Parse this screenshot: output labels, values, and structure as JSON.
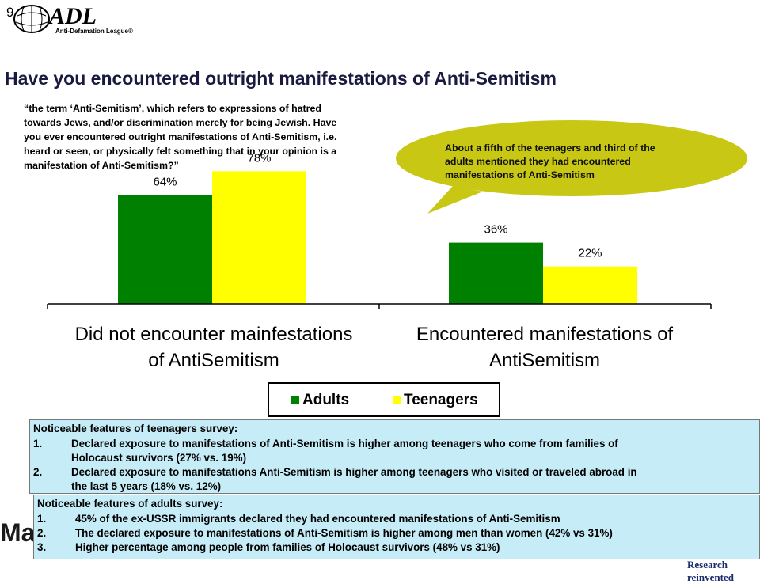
{
  "slide_number": "9",
  "logo": {
    "text": "ADL",
    "subtitle": "Anti-Defamation League®"
  },
  "title": "Have you encountered outright manifestations of Anti-Semitism",
  "question": {
    "lines": [
      "“the term ‘Anti-Semitism’, which refers to expressions of hatred",
      "towards Jews, and/or discrimination merely for being Jewish. Have",
      "you ever encountered outright manifestations of Anti-Semitism, i.e.",
      "heard or seen, or physically felt something that in your opinion is a",
      "manifestation of Anti-Semitism?”"
    ]
  },
  "callout": {
    "text": "About a fifth of the teenagers and third of the adults mentioned they had encountered manifestations of Anti-Semitism",
    "color": "#c8c814"
  },
  "chart_data": {
    "type": "bar",
    "categories": [
      "Did not encounter mainfestations of AntiSemitism",
      "Encountered manifestations of AntiSemitism"
    ],
    "category_lines": [
      [
        "Did not encounter mainfestations",
        "of AntiSemitism"
      ],
      [
        "Encountered manifestations of",
        "AntiSemitism"
      ]
    ],
    "series": [
      {
        "name": "Adults",
        "values": [
          64,
          36
        ],
        "labels": [
          "64%",
          "36%"
        ],
        "color": "#008000"
      },
      {
        "name": "Teenagers",
        "values": [
          78,
          22
        ],
        "labels": [
          "78%",
          "22%"
        ],
        "color": "#ffff00"
      }
    ],
    "ylim": [
      0,
      100
    ],
    "grid": false,
    "legend_position": "bottom"
  },
  "teen_box": {
    "heading": "Noticeable features of teenagers survey:",
    "items": [
      {
        "num": "1.",
        "lines": [
          "Declared exposure to manifestations of Anti-Semitism is higher among teenagers who come from families of",
          "Holocaust survivors (27% vs. 19%)"
        ]
      },
      {
        "num": "2.",
        "lines": [
          "Declared exposure to manifestations Anti-Semitism is higher among teenagers who visited or traveled abroad in",
          "the last 5 years (18% vs. 12%)"
        ]
      }
    ]
  },
  "adult_box": {
    "heading": "Noticeable features of adults survey:",
    "items": [
      {
        "num": "1.",
        "text": "45% of the ex-USSR immigrants declared they had encountered manifestations of Anti-Semitism"
      },
      {
        "num": "2.",
        "text": "The declared exposure to manifestations of Anti-Semitism is higher among men than women (42% vs 31%)"
      },
      {
        "num": "3.",
        "text": "Higher percentage among people from families of Holocaust survivors (48% vs 31%)"
      }
    ]
  },
  "footer": {
    "logo_text": "Ma Watch",
    "tagline": "Research reinvented"
  }
}
